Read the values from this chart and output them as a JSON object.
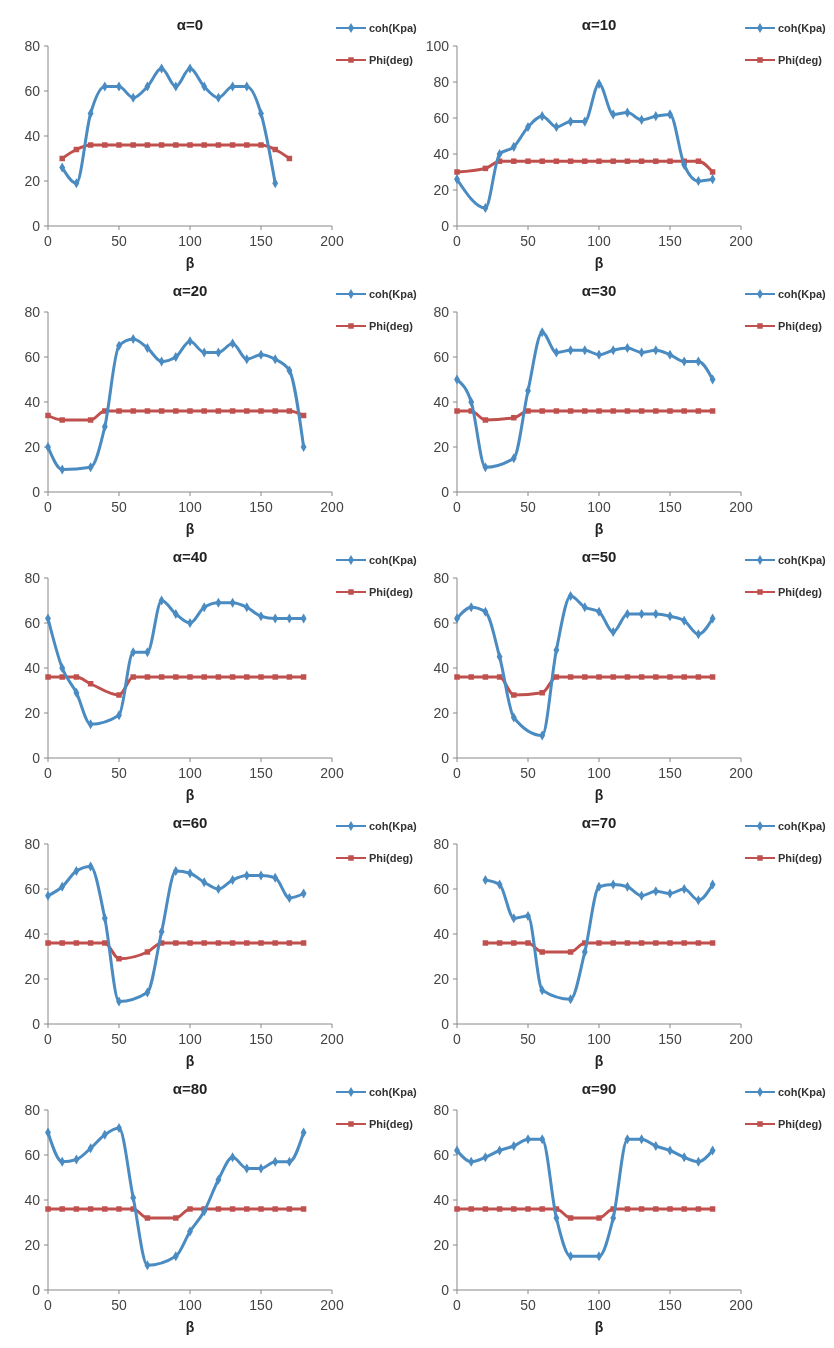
{
  "chart_data": [
    {
      "type": "line",
      "title": "α=0",
      "xlabel": "β",
      "xlim": [
        0,
        200
      ],
      "xticks": [
        0,
        50,
        100,
        150,
        200
      ],
      "ylim": [
        0,
        80
      ],
      "yticks": [
        0,
        20,
        40,
        60,
        80
      ],
      "legend": "right",
      "series": [
        {
          "name": "coh(Kpa)",
          "color": "#4a8bc2",
          "marker": "diamond",
          "x": [
            10,
            20,
            30,
            40,
            50,
            60,
            70,
            80,
            90,
            100,
            110,
            120,
            130,
            140,
            150,
            160
          ],
          "values": [
            26,
            19,
            50,
            62,
            62,
            57,
            62,
            70,
            62,
            70,
            62,
            57,
            62,
            62,
            50,
            19
          ]
        },
        {
          "name": "Phi(deg)",
          "color": "#c0504d",
          "marker": "square",
          "x": [
            10,
            20,
            30,
            40,
            50,
            60,
            70,
            80,
            90,
            100,
            110,
            120,
            130,
            140,
            150,
            160,
            170
          ],
          "values": [
            30,
            34,
            36,
            36,
            36,
            36,
            36,
            36,
            36,
            36,
            36,
            36,
            36,
            36,
            36,
            34,
            30
          ]
        }
      ]
    },
    {
      "type": "line",
      "title": "α=10",
      "xlabel": "β",
      "xlim": [
        0,
        200
      ],
      "xticks": [
        0,
        50,
        100,
        150,
        200
      ],
      "ylim": [
        0,
        100
      ],
      "yticks": [
        0,
        20,
        40,
        60,
        80,
        100
      ],
      "legend": "right",
      "series": [
        {
          "name": "coh(Kpa)",
          "color": "#4a8bc2",
          "marker": "diamond",
          "x": [
            0,
            20,
            30,
            40,
            50,
            60,
            70,
            80,
            90,
            100,
            110,
            120,
            130,
            140,
            150,
            160,
            170,
            180
          ],
          "values": [
            26,
            10,
            40,
            44,
            55,
            61,
            55,
            58,
            58,
            79,
            62,
            63,
            59,
            61,
            62,
            34,
            25,
            26
          ]
        },
        {
          "name": "Phi(deg)",
          "color": "#c0504d",
          "marker": "square",
          "x": [
            0,
            20,
            30,
            40,
            50,
            60,
            70,
            80,
            90,
            100,
            110,
            120,
            130,
            140,
            150,
            160,
            170,
            180
          ],
          "values": [
            30,
            32,
            36,
            36,
            36,
            36,
            36,
            36,
            36,
            36,
            36,
            36,
            36,
            36,
            36,
            36,
            36,
            30
          ]
        }
      ]
    },
    {
      "type": "line",
      "title": "α=20",
      "xlabel": "β",
      "xlim": [
        0,
        200
      ],
      "xticks": [
        0,
        50,
        100,
        150,
        200
      ],
      "ylim": [
        0,
        80
      ],
      "yticks": [
        0,
        20,
        40,
        60,
        80
      ],
      "legend": "right",
      "series": [
        {
          "name": "coh(Kpa)",
          "color": "#4a8bc2",
          "marker": "diamond",
          "x": [
            0,
            10,
            30,
            40,
            50,
            60,
            70,
            80,
            90,
            100,
            110,
            120,
            130,
            140,
            150,
            160,
            170,
            180
          ],
          "values": [
            20,
            10,
            11,
            29,
            65,
            68,
            64,
            58,
            60,
            67,
            62,
            62,
            66,
            59,
            61,
            59,
            54,
            20
          ]
        },
        {
          "name": "Phi(deg)",
          "color": "#c0504d",
          "marker": "square",
          "x": [
            0,
            10,
            30,
            40,
            50,
            60,
            70,
            80,
            90,
            100,
            110,
            120,
            130,
            140,
            150,
            160,
            170,
            180
          ],
          "values": [
            34,
            32,
            32,
            36,
            36,
            36,
            36,
            36,
            36,
            36,
            36,
            36,
            36,
            36,
            36,
            36,
            36,
            34
          ]
        }
      ]
    },
    {
      "type": "line",
      "title": "α=30",
      "xlabel": "β",
      "xlim": [
        0,
        200
      ],
      "xticks": [
        0,
        50,
        100,
        150,
        200
      ],
      "ylim": [
        0,
        80
      ],
      "yticks": [
        0,
        20,
        40,
        60,
        80
      ],
      "legend": "right",
      "series": [
        {
          "name": "coh(Kpa)",
          "color": "#4a8bc2",
          "marker": "diamond",
          "x": [
            0,
            10,
            20,
            40,
            50,
            60,
            70,
            80,
            90,
            100,
            110,
            120,
            130,
            140,
            150,
            160,
            170,
            180
          ],
          "values": [
            50,
            40,
            11,
            15,
            45,
            71,
            62,
            63,
            63,
            61,
            63,
            64,
            62,
            63,
            61,
            58,
            58,
            50
          ]
        },
        {
          "name": "Phi(deg)",
          "color": "#c0504d",
          "marker": "square",
          "x": [
            0,
            10,
            20,
            40,
            50,
            60,
            70,
            80,
            90,
            100,
            110,
            120,
            130,
            140,
            150,
            160,
            170,
            180
          ],
          "values": [
            36,
            36,
            32,
            33,
            36,
            36,
            36,
            36,
            36,
            36,
            36,
            36,
            36,
            36,
            36,
            36,
            36,
            36
          ]
        }
      ]
    },
    {
      "type": "line",
      "title": "α=40",
      "xlabel": "β",
      "xlim": [
        0,
        200
      ],
      "xticks": [
        0,
        50,
        100,
        150,
        200
      ],
      "ylim": [
        0,
        80
      ],
      "yticks": [
        0,
        20,
        40,
        60,
        80
      ],
      "legend": "right",
      "series": [
        {
          "name": "coh(Kpa)",
          "color": "#4a8bc2",
          "marker": "diamond",
          "x": [
            0,
            10,
            20,
            30,
            50,
            60,
            70,
            80,
            90,
            100,
            110,
            120,
            130,
            140,
            150,
            160,
            170,
            180
          ],
          "values": [
            62,
            40,
            29,
            15,
            19,
            47,
            47,
            70,
            64,
            60,
            67,
            69,
            69,
            67,
            63,
            62,
            62,
            62
          ]
        },
        {
          "name": "Phi(deg)",
          "color": "#c0504d",
          "marker": "square",
          "x": [
            0,
            10,
            20,
            30,
            50,
            60,
            70,
            80,
            90,
            100,
            110,
            120,
            130,
            140,
            150,
            160,
            170,
            180
          ],
          "values": [
            36,
            36,
            36,
            33,
            28,
            36,
            36,
            36,
            36,
            36,
            36,
            36,
            36,
            36,
            36,
            36,
            36,
            36
          ]
        }
      ]
    },
    {
      "type": "line",
      "title": "α=50",
      "xlabel": "β",
      "xlim": [
        0,
        200
      ],
      "xticks": [
        0,
        50,
        100,
        150,
        200
      ],
      "ylim": [
        0,
        80
      ],
      "yticks": [
        0,
        20,
        40,
        60,
        80
      ],
      "legend": "right",
      "series": [
        {
          "name": "coh(Kpa)",
          "color": "#4a8bc2",
          "marker": "diamond",
          "x": [
            0,
            10,
            20,
            30,
            40,
            60,
            70,
            80,
            90,
            100,
            110,
            120,
            130,
            140,
            150,
            160,
            170,
            180
          ],
          "values": [
            62,
            67,
            65,
            45,
            18,
            10,
            48,
            72,
            67,
            65,
            56,
            64,
            64,
            64,
            63,
            61,
            55,
            62
          ]
        },
        {
          "name": "Phi(deg)",
          "color": "#c0504d",
          "marker": "square",
          "x": [
            0,
            10,
            20,
            30,
            40,
            60,
            70,
            80,
            90,
            100,
            110,
            120,
            130,
            140,
            150,
            160,
            170,
            180
          ],
          "values": [
            36,
            36,
            36,
            36,
            28,
            29,
            36,
            36,
            36,
            36,
            36,
            36,
            36,
            36,
            36,
            36,
            36,
            36
          ]
        }
      ]
    },
    {
      "type": "line",
      "title": "α=60",
      "xlabel": "β",
      "xlim": [
        0,
        200
      ],
      "xticks": [
        0,
        50,
        100,
        150,
        200
      ],
      "ylim": [
        0,
        80
      ],
      "yticks": [
        0,
        20,
        40,
        60,
        80
      ],
      "legend": "right",
      "series": [
        {
          "name": "coh(Kpa)",
          "color": "#4a8bc2",
          "marker": "diamond",
          "x": [
            0,
            10,
            20,
            30,
            40,
            50,
            70,
            80,
            90,
            100,
            110,
            120,
            130,
            140,
            150,
            160,
            170,
            180
          ],
          "values": [
            57,
            61,
            68,
            70,
            47,
            10,
            14,
            41,
            68,
            67,
            63,
            60,
            64,
            66,
            66,
            65,
            56,
            58
          ]
        },
        {
          "name": "Phi(deg)",
          "color": "#c0504d",
          "marker": "square",
          "x": [
            0,
            10,
            20,
            30,
            40,
            50,
            70,
            80,
            90,
            100,
            110,
            120,
            130,
            140,
            150,
            160,
            170,
            180
          ],
          "values": [
            36,
            36,
            36,
            36,
            36,
            29,
            32,
            36,
            36,
            36,
            36,
            36,
            36,
            36,
            36,
            36,
            36,
            36
          ]
        }
      ]
    },
    {
      "type": "line",
      "title": "α=70",
      "xlabel": "β",
      "xlim": [
        0,
        200
      ],
      "xticks": [
        0,
        50,
        100,
        150,
        200
      ],
      "ylim": [
        0,
        80
      ],
      "yticks": [
        0,
        20,
        40,
        60,
        80
      ],
      "legend": "right",
      "series": [
        {
          "name": "coh(Kpa)",
          "color": "#4a8bc2",
          "marker": "diamond",
          "x": [
            20,
            30,
            40,
            50,
            60,
            80,
            90,
            100,
            110,
            120,
            130,
            140,
            150,
            160,
            170,
            180
          ],
          "values": [
            64,
            62,
            47,
            48,
            15,
            11,
            32,
            61,
            62,
            61,
            57,
            59,
            58,
            60,
            55,
            62
          ]
        },
        {
          "name": "Phi(deg)",
          "color": "#c0504d",
          "marker": "square",
          "x": [
            20,
            30,
            40,
            50,
            60,
            80,
            90,
            100,
            110,
            120,
            130,
            140,
            150,
            160,
            170,
            180
          ],
          "values": [
            36,
            36,
            36,
            36,
            32,
            32,
            36,
            36,
            36,
            36,
            36,
            36,
            36,
            36,
            36,
            36
          ]
        }
      ]
    },
    {
      "type": "line",
      "title": "α=80",
      "xlabel": "β",
      "xlim": [
        0,
        200
      ],
      "xticks": [
        0,
        50,
        100,
        150,
        200
      ],
      "ylim": [
        0,
        80
      ],
      "yticks": [
        0,
        20,
        40,
        60,
        80
      ],
      "legend": "right",
      "series": [
        {
          "name": "coh(Kpa)",
          "color": "#4a8bc2",
          "marker": "diamond",
          "x": [
            0,
            10,
            20,
            30,
            40,
            50,
            60,
            70,
            90,
            100,
            110,
            120,
            130,
            140,
            150,
            160,
            170,
            180
          ],
          "values": [
            70,
            57,
            58,
            63,
            69,
            72,
            41,
            11,
            15,
            26,
            35,
            49,
            59,
            54,
            54,
            57,
            57,
            70
          ]
        },
        {
          "name": "Phi(deg)",
          "color": "#c0504d",
          "marker": "square",
          "x": [
            0,
            10,
            20,
            30,
            40,
            50,
            60,
            70,
            90,
            100,
            110,
            120,
            130,
            140,
            150,
            160,
            170,
            180
          ],
          "values": [
            36,
            36,
            36,
            36,
            36,
            36,
            36,
            32,
            32,
            36,
            36,
            36,
            36,
            36,
            36,
            36,
            36,
            36
          ]
        }
      ]
    },
    {
      "type": "line",
      "title": "α=90",
      "xlabel": "β",
      "xlim": [
        0,
        200
      ],
      "xticks": [
        0,
        50,
        100,
        150,
        200
      ],
      "ylim": [
        0,
        80
      ],
      "yticks": [
        0,
        20,
        40,
        60,
        80
      ],
      "legend": "right",
      "series": [
        {
          "name": "coh(Kpa)",
          "color": "#4a8bc2",
          "marker": "diamond",
          "x": [
            0,
            10,
            20,
            30,
            40,
            50,
            60,
            70,
            80,
            100,
            110,
            120,
            130,
            140,
            150,
            160,
            170,
            180
          ],
          "values": [
            62,
            57,
            59,
            62,
            64,
            67,
            67,
            32,
            15,
            15,
            32,
            67,
            67,
            64,
            62,
            59,
            57,
            62
          ]
        },
        {
          "name": "Phi(deg)",
          "color": "#c0504d",
          "marker": "square",
          "x": [
            0,
            10,
            20,
            30,
            40,
            50,
            60,
            70,
            80,
            100,
            110,
            120,
            130,
            140,
            150,
            160,
            170,
            180
          ],
          "values": [
            36,
            36,
            36,
            36,
            36,
            36,
            36,
            36,
            32,
            32,
            36,
            36,
            36,
            36,
            36,
            36,
            36,
            36
          ]
        }
      ]
    }
  ]
}
